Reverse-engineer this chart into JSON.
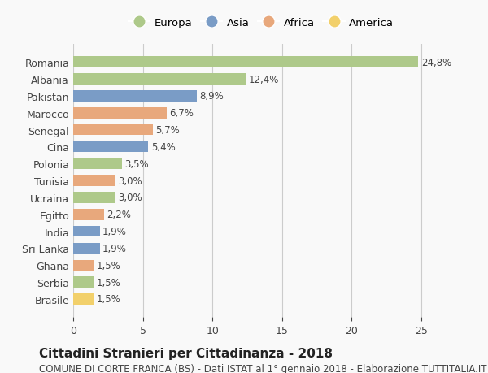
{
  "countries": [
    "Romania",
    "Albania",
    "Pakistan",
    "Marocco",
    "Senegal",
    "Cina",
    "Polonia",
    "Tunisia",
    "Ucraina",
    "Egitto",
    "India",
    "Sri Lanka",
    "Ghana",
    "Serbia",
    "Brasile"
  ],
  "values": [
    24.8,
    12.4,
    8.9,
    6.7,
    5.7,
    5.4,
    3.5,
    3.0,
    3.0,
    2.2,
    1.9,
    1.9,
    1.5,
    1.5,
    1.5
  ],
  "labels": [
    "24,8%",
    "12,4%",
    "8,9%",
    "6,7%",
    "5,7%",
    "5,4%",
    "3,5%",
    "3,0%",
    "3,0%",
    "2,2%",
    "1,9%",
    "1,9%",
    "1,5%",
    "1,5%",
    "1,5%"
  ],
  "continents": [
    "Europa",
    "Europa",
    "Asia",
    "Africa",
    "Africa",
    "Asia",
    "Europa",
    "Africa",
    "Europa",
    "Africa",
    "Asia",
    "Asia",
    "Africa",
    "Europa",
    "America"
  ],
  "colors": {
    "Europa": "#aec98a",
    "Asia": "#7a9cc6",
    "Africa": "#e8a87c",
    "America": "#f2d06b"
  },
  "legend_order": [
    "Europa",
    "Asia",
    "Africa",
    "America"
  ],
  "title": "Cittadini Stranieri per Cittadinanza - 2018",
  "subtitle": "COMUNE DI CORTE FRANCA (BS) - Dati ISTAT al 1° gennaio 2018 - Elaborazione TUTTITALIA.IT",
  "xlim": [
    0,
    27
  ],
  "xticks": [
    0,
    5,
    10,
    15,
    20,
    25
  ],
  "background_color": "#f9f9f9",
  "grid_color": "#cccccc",
  "title_fontsize": 11,
  "subtitle_fontsize": 8.5,
  "bar_height": 0.65
}
